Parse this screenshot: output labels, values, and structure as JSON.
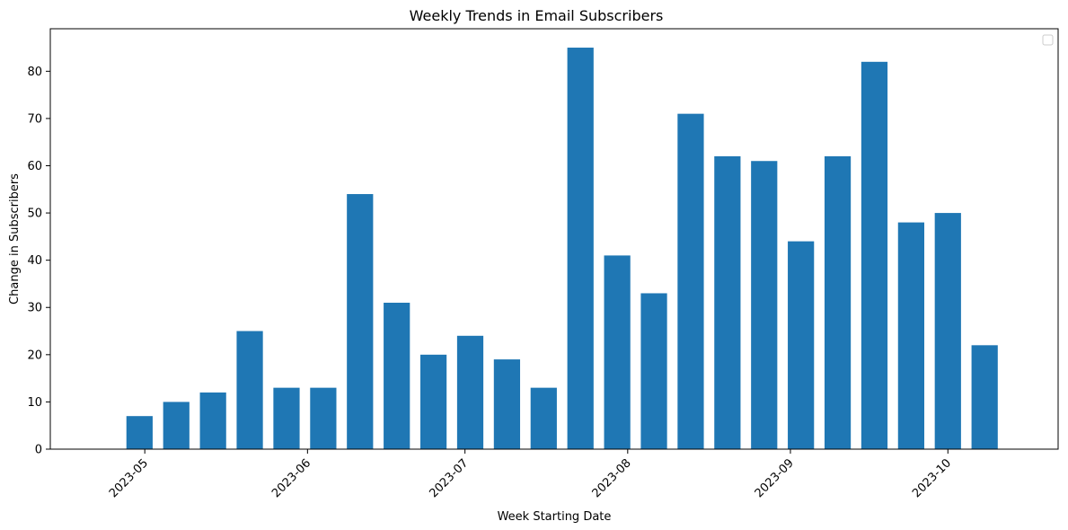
{
  "chart_data": {
    "type": "bar",
    "title": "Weekly Trends in Email Subscribers",
    "xlabel": "Week Starting Date",
    "ylabel": "Change in Subscribers",
    "bar_color": "#1f77b4",
    "x_axis": "date",
    "xlim": [
      "2023-04-13",
      "2023-10-22"
    ],
    "ylim": [
      0,
      89
    ],
    "x_ticks": [
      "2023-05-01",
      "2023-06-01",
      "2023-07-01",
      "2023-08-01",
      "2023-09-01",
      "2023-10-01"
    ],
    "x_tick_labels": [
      "2023-05",
      "2023-06",
      "2023-07",
      "2023-08",
      "2023-09",
      "2023-10"
    ],
    "y_ticks": [
      0,
      10,
      20,
      30,
      40,
      50,
      60,
      70,
      80
    ],
    "y_tick_labels": [
      "0",
      "10",
      "20",
      "30",
      "40",
      "50",
      "60",
      "70",
      "80"
    ],
    "x": [
      "2023-04-30",
      "2023-05-07",
      "2023-05-14",
      "2023-05-21",
      "2023-05-28",
      "2023-06-04",
      "2023-06-11",
      "2023-06-18",
      "2023-06-25",
      "2023-07-02",
      "2023-07-09",
      "2023-07-16",
      "2023-07-23",
      "2023-07-30",
      "2023-08-06",
      "2023-08-13",
      "2023-08-20",
      "2023-08-27",
      "2023-09-03",
      "2023-09-10",
      "2023-09-17",
      "2023-09-24",
      "2023-10-01",
      "2023-10-08"
    ],
    "values": [
      7,
      10,
      12,
      25,
      13,
      13,
      54,
      31,
      20,
      24,
      19,
      13,
      85,
      41,
      33,
      71,
      62,
      61,
      44,
      62,
      82,
      48,
      50,
      22
    ],
    "legend": "top-right",
    "grid": false
  }
}
